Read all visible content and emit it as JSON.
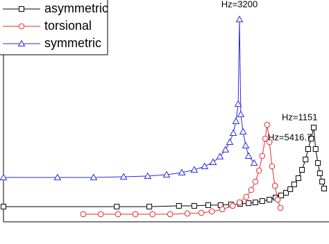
{
  "chart_data": {
    "type": "line",
    "log_y": true,
    "xlim": [
      0,
      100
    ],
    "ylim": [
      1,
      10000
    ],
    "legend": "upper left",
    "annotations": [
      "Hz=3200",
      "Hz=5416.7",
      "Hz=1151"
    ],
    "series": [
      {
        "name": "asymmetric",
        "color": "#000000",
        "marker": "square",
        "x": [
          0,
          34.8,
          44.8,
          53.9,
          58.6,
          62.9,
          66.7,
          69.9,
          72.7,
          75.3,
          77.4,
          79.5,
          81.7,
          83.6,
          85.3,
          86.8,
          88.1,
          89.3,
          90.6,
          91.7,
          92.8,
          93.6,
          94.5,
          95.3,
          95.9,
          96.6,
          97.2,
          97.9,
          98.5
        ],
        "values": [
          1.88,
          1.88,
          1.88,
          1.94,
          1.94,
          2.0,
          2.0,
          2.05,
          2.11,
          2.17,
          2.24,
          2.37,
          2.51,
          2.74,
          2.99,
          3.35,
          3.87,
          4.73,
          6.12,
          8.66,
          13.3,
          20.5,
          31.6,
          50.1,
          20.5,
          11.5,
          7.5,
          5.31,
          3.98
        ]
      },
      {
        "name": "torsional",
        "color": "#e8262b",
        "marker": "circle",
        "x": [
          24.5,
          29.9,
          35.2,
          40.5,
          45.8,
          51.2,
          56.5,
          60.8,
          64.0,
          67.2,
          70.4,
          72.5,
          74.6,
          76.1,
          77.4,
          78.5,
          79.5,
          80.4,
          81.0,
          81.7,
          82.5,
          83.4,
          84.2,
          85.1
        ],
        "values": [
          1.37,
          1.37,
          1.37,
          1.37,
          1.37,
          1.37,
          1.41,
          1.45,
          1.54,
          1.68,
          1.94,
          2.24,
          2.82,
          3.76,
          5.31,
          8.41,
          15.4,
          31.6,
          56.2,
          27.4,
          10,
          4.47,
          2.51,
          1.78
        ]
      },
      {
        "name": "symmetric",
        "color": "#2a2ae0",
        "marker": "triangle",
        "x": [
          0,
          16.6,
          27.7,
          36.9,
          44.3,
          50.1,
          54.8,
          58.6,
          61.8,
          64.4,
          66.5,
          68.2,
          69.5,
          70.6,
          71.4,
          72.1,
          72.5,
          72.9,
          73.6,
          74.4,
          75.3,
          77.0
        ],
        "values": [
          6.31,
          6.31,
          6.31,
          6.49,
          6.68,
          7.08,
          7.72,
          8.66,
          10,
          11.9,
          15.0,
          20.0,
          27.4,
          39.8,
          64.9,
          133,
          4467,
          86.6,
          42.2,
          23.7,
          15.4,
          11.5
        ]
      }
    ]
  }
}
